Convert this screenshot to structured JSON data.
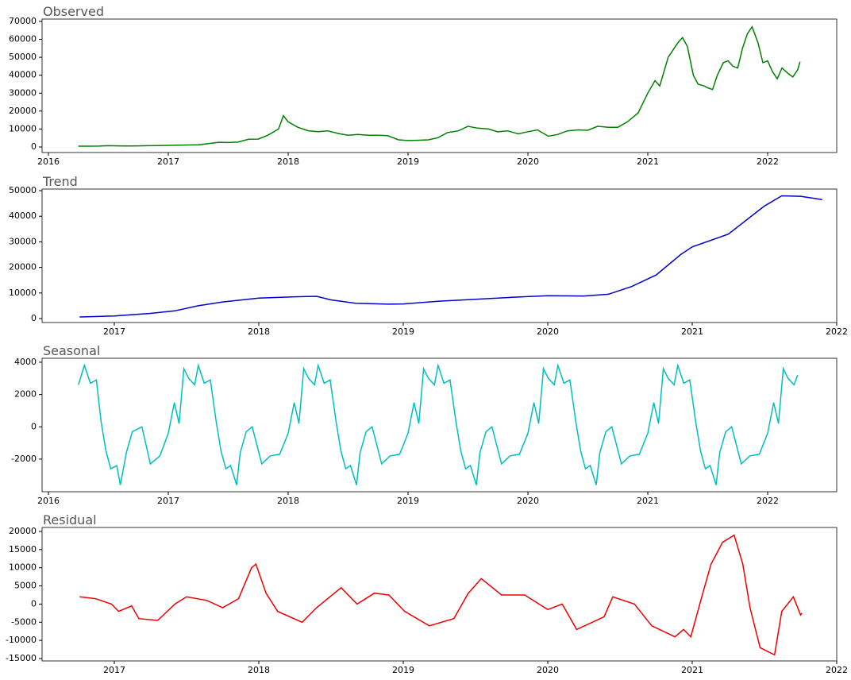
{
  "chart_data": [
    {
      "type": "line",
      "title": "Observed",
      "color": "#008000",
      "xlim": [
        2015.947,
        2022.576
      ],
      "ylim": [
        -3100,
        71300
      ],
      "xticks": [
        2016,
        2017,
        2018,
        2019,
        2020,
        2021,
        2022
      ],
      "yticks": [
        0,
        10000,
        20000,
        30000,
        40000,
        50000,
        60000,
        70000
      ],
      "x": [
        2016.25,
        2016.33,
        2016.42,
        2016.5,
        2016.58,
        2016.67,
        2016.75,
        2016.83,
        2016.92,
        2017.0,
        2017.08,
        2017.17,
        2017.25,
        2017.33,
        2017.42,
        2017.5,
        2017.58,
        2017.67,
        2017.75,
        2017.83,
        2017.92,
        2017.96,
        2018.0,
        2018.08,
        2018.17,
        2018.25,
        2018.33,
        2018.42,
        2018.5,
        2018.58,
        2018.67,
        2018.75,
        2018.83,
        2018.92,
        2019.0,
        2019.08,
        2019.17,
        2019.25,
        2019.33,
        2019.42,
        2019.5,
        2019.58,
        2019.67,
        2019.75,
        2019.83,
        2019.92,
        2020.0,
        2020.08,
        2020.17,
        2020.25,
        2020.33,
        2020.42,
        2020.5,
        2020.58,
        2020.67,
        2020.75,
        2020.83,
        2020.92,
        2021.0,
        2021.06,
        2021.1,
        2021.17,
        2021.25,
        2021.29,
        2021.33,
        2021.38,
        2021.42,
        2021.47,
        2021.5,
        2021.54,
        2021.58,
        2021.63,
        2021.67,
        2021.71,
        2021.75,
        2021.79,
        2021.83,
        2021.87,
        2021.92,
        2021.96,
        2022.0,
        2022.04,
        2022.08,
        2022.12,
        2022.17,
        2022.21,
        2022.25,
        2022.27
      ],
      "values": [
        450,
        450,
        500,
        700,
        600,
        580,
        610,
        700,
        750,
        900,
        1000,
        1100,
        1200,
        1800,
        2600,
        2500,
        2700,
        4300,
        4400,
        6500,
        10000,
        17500,
        14000,
        11000,
        9000,
        8500,
        9000,
        7500,
        6500,
        7000,
        6500,
        6500,
        6300,
        4000,
        3600,
        3700,
        4000,
        5200,
        8000,
        9000,
        11500,
        10500,
        10000,
        8400,
        9000,
        7300,
        8500,
        9500,
        6000,
        7000,
        9000,
        9500,
        9300,
        11500,
        11000,
        11000,
        14000,
        19000,
        30000,
        37000,
        34000,
        50000,
        58000,
        61000,
        56000,
        40000,
        35000,
        34000,
        33000,
        32000,
        40000,
        47000,
        48000,
        45000,
        44000,
        55000,
        63000,
        67000,
        58000,
        47000,
        48000,
        42000,
        38000,
        44000,
        41000,
        39000,
        43000,
        47500
      ]
    },
    {
      "type": "line",
      "title": "Trend",
      "color": "#0000cc",
      "xlim": [
        2016.5,
        2022.0
      ],
      "ylim": [
        -1560,
        50625
      ],
      "xticks": [
        2017,
        2018,
        2019,
        2020,
        2021,
        2022
      ],
      "yticks": [
        0,
        10000,
        20000,
        30000,
        40000,
        50000
      ],
      "x": [
        2016.76,
        2017.0,
        2017.25,
        2017.42,
        2017.58,
        2017.75,
        2018.0,
        2018.25,
        2018.4,
        2018.5,
        2018.67,
        2018.9,
        2019.0,
        2019.25,
        2019.5,
        2019.75,
        2020.0,
        2020.25,
        2020.42,
        2020.58,
        2020.75,
        2020.92,
        2021.0,
        2021.25,
        2021.5,
        2021.62,
        2021.75,
        2021.9
      ],
      "values": [
        600,
        1000,
        2000,
        3000,
        5000,
        6500,
        8000,
        8500,
        8700,
        7300,
        6000,
        5600,
        5700,
        6800,
        7500,
        8300,
        8900,
        8800,
        9500,
        12500,
        17000,
        25000,
        28000,
        33000,
        44000,
        48000,
        47800,
        46500
      ]
    },
    {
      "type": "line",
      "title": "Seasonal",
      "color": "#00bfbf",
      "xlim": [
        2015.947,
        2022.576
      ],
      "ylim": [
        -4020,
        4245
      ],
      "xticks": [
        2016,
        2017,
        2018,
        2019,
        2020,
        2021,
        2022
      ],
      "yticks": [
        -2000,
        0,
        2000,
        4000
      ],
      "x": [
        2016.25,
        2016.3,
        2016.35,
        2016.4,
        2016.44,
        2016.48,
        2016.52,
        2016.57,
        2016.6,
        2016.65,
        2016.7,
        2016.78,
        2016.85,
        2016.93,
        2017.0,
        2017.05,
        2017.09,
        2017.13,
        2017.17,
        2017.22,
        2017.25,
        2017.3,
        2017.35,
        2017.4,
        2017.44,
        2017.48,
        2017.52,
        2017.57,
        2017.6,
        2017.65,
        2017.7,
        2017.78,
        2017.85,
        2017.93,
        2018.0,
        2018.05,
        2018.09,
        2018.13,
        2018.17,
        2018.22,
        2018.25,
        2018.3,
        2018.35,
        2018.4,
        2018.44,
        2018.48,
        2018.52,
        2018.57,
        2018.6,
        2018.65,
        2018.7,
        2018.78,
        2018.85,
        2018.93,
        2019.0,
        2019.05,
        2019.09,
        2019.13,
        2019.17,
        2019.22,
        2019.25,
        2019.3,
        2019.35,
        2019.4,
        2019.44,
        2019.48,
        2019.52,
        2019.57,
        2019.6,
        2019.65,
        2019.7,
        2019.78,
        2019.85,
        2019.93,
        2020.0,
        2020.05,
        2020.09,
        2020.13,
        2020.17,
        2020.22,
        2020.25,
        2020.3,
        2020.35,
        2020.4,
        2020.44,
        2020.48,
        2020.52,
        2020.57,
        2020.6,
        2020.65,
        2020.7,
        2020.78,
        2020.85,
        2020.93,
        2021.0,
        2021.05,
        2021.09,
        2021.13,
        2021.17,
        2021.22,
        2021.25,
        2021.3,
        2021.35,
        2021.4,
        2021.44,
        2021.48,
        2021.52,
        2021.57,
        2021.6,
        2021.65,
        2021.7,
        2021.78,
        2021.85,
        2021.93,
        2022.0,
        2022.05,
        2022.09,
        2022.13,
        2022.17,
        2022.22,
        2022.25
      ],
      "values": [
        2600,
        3800,
        2700,
        2900,
        300,
        -1500,
        -2600,
        -2400,
        -3600,
        -1600,
        -300,
        0,
        -2300,
        -1800,
        -400,
        1500,
        200,
        3600,
        3000,
        2600,
        3800,
        2700,
        2900,
        300,
        -1500,
        -2600,
        -2400,
        -3600,
        -1600,
        -300,
        0,
        -2300,
        -1800,
        -1700,
        -400,
        1500,
        200,
        3600,
        3000,
        2600,
        3800,
        2700,
        2900,
        300,
        -1500,
        -2600,
        -2400,
        -3600,
        -1600,
        -300,
        0,
        -2300,
        -1800,
        -1700,
        -400,
        1500,
        200,
        3600,
        3000,
        2600,
        3800,
        2700,
        2900,
        300,
        -1500,
        -2600,
        -2400,
        -3600,
        -1600,
        -300,
        0,
        -2300,
        -1800,
        -1700,
        -400,
        1500,
        200,
        3600,
        3000,
        2600,
        3800,
        2700,
        2900,
        300,
        -1500,
        -2600,
        -2400,
        -3600,
        -1600,
        -300,
        0,
        -2300,
        -1800,
        -1700,
        -400,
        1500,
        200,
        3600,
        3000,
        2600,
        3800,
        2700,
        2900,
        300,
        -1500,
        -2600,
        -2400,
        -3600,
        -1600,
        -300,
        0,
        -2300,
        -1800,
        -1700,
        -400,
        1500,
        200,
        3600,
        3000,
        2600,
        3200
      ]
    },
    {
      "type": "line",
      "title": "Residual",
      "color": "#ee0000",
      "xlim": [
        2016.5,
        2022.0
      ],
      "ylim": [
        -15660,
        21090
      ],
      "xticks": [
        2017,
        2018,
        2019,
        2020,
        2021,
        2022
      ],
      "yticks": [
        -15000,
        -10000,
        -5000,
        0,
        5000,
        10000,
        15000,
        20000
      ],
      "x": [
        2016.76,
        2016.87,
        2016.98,
        2017.03,
        2017.12,
        2017.17,
        2017.3,
        2017.42,
        2017.5,
        2017.64,
        2017.75,
        2017.86,
        2017.95,
        2017.98,
        2018.05,
        2018.13,
        2018.3,
        2018.4,
        2018.57,
        2018.68,
        2018.8,
        2018.9,
        2019.01,
        2019.18,
        2019.35,
        2019.45,
        2019.54,
        2019.68,
        2019.84,
        2020.0,
        2020.1,
        2020.2,
        2020.39,
        2020.45,
        2020.6,
        2020.72,
        2020.88,
        2020.94,
        2020.99,
        2021.08,
        2021.13,
        2021.21,
        2021.29,
        2021.35,
        2021.4,
        2021.47,
        2021.57,
        2021.62,
        2021.7,
        2021.75,
        2021.76
      ],
      "values": [
        2000,
        1500,
        0,
        -2000,
        -500,
        -4000,
        -4500,
        0,
        2000,
        1000,
        -1000,
        1500,
        10000,
        11000,
        3000,
        -2000,
        -5000,
        -1000,
        4500,
        0,
        3000,
        2500,
        -2000,
        -6000,
        -4000,
        3000,
        7000,
        2500,
        2500,
        -1500,
        0,
        -7000,
        -3500,
        2000,
        0,
        -6000,
        -9000,
        -7000,
        -9000,
        4000,
        11000,
        17000,
        19000,
        11000,
        -1000,
        -12000,
        -14000,
        -2000,
        2000,
        -3000,
        -2500
      ]
    }
  ]
}
